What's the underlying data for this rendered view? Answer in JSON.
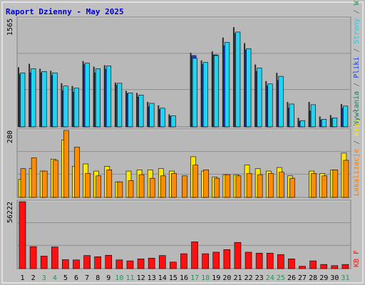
{
  "title": "Raport Dzienny -  May 2025",
  "colors": {
    "bg": "#c0c0c0",
    "panel": "#b8b8b8",
    "visits": "#1f7a5a",
    "pages": "#2646c8",
    "files": "#22d3f2",
    "hits": "#2a2a2a",
    "locations_fill_front": "#ff8c00",
    "locations_fill_back": "#ffe600",
    "kb": "#ff1010",
    "weekend_label": "#2f8f5a"
  },
  "chart_data": [
    {
      "type": "bar",
      "name": "top",
      "ylim": [
        0,
        1565
      ],
      "ytick_label": "1565",
      "right_label_parts": [
        {
          "text": "Wywłania",
          "color": "#1f7a5a"
        },
        {
          "text": " / ",
          "color": "#6a6a6a"
        },
        {
          "text": "Pliki",
          "color": "#2244cc"
        },
        {
          "text": " / ",
          "color": "#6a6a6a"
        },
        {
          "text": "Strony",
          "color": "#22c7df"
        },
        {
          "text": " / ",
          "color": "#6a6a6a"
        },
        {
          "text": "Wizyty",
          "color": "#2f8f5a"
        }
      ],
      "categories": [
        "1",
        "2",
        "3",
        "4",
        "5",
        "6",
        "7",
        "8",
        "9",
        "10",
        "11",
        "12",
        "13",
        "14",
        "15",
        "16",
        "17",
        "18",
        "19",
        "20",
        "21",
        "22",
        "23",
        "24",
        "25",
        "26",
        "27",
        "28",
        "29",
        "30",
        "31"
      ],
      "series": [
        {
          "name": "hits",
          "values": [
            860,
            910,
            840,
            810,
            630,
            590,
            950,
            870,
            890,
            640,
            520,
            490,
            360,
            310,
            180,
            0,
            1070,
            960,
            1090,
            1290,
            1440,
            1210,
            900,
            660,
            780,
            360,
            130,
            360,
            150,
            170,
            330
          ]
        },
        {
          "name": "files",
          "values": [
            780,
            840,
            800,
            780,
            590,
            560,
            920,
            840,
            880,
            630,
            490,
            460,
            340,
            270,
            160,
            0,
            990,
            930,
            1030,
            1220,
            1370,
            1130,
            850,
            620,
            730,
            330,
            90,
            320,
            110,
            130,
            300
          ]
        },
        {
          "name": "pages",
          "values": [
            760,
            780,
            780,
            740,
            520,
            500,
            900,
            780,
            830,
            600,
            480,
            430,
            290,
            250,
            150,
            0,
            1030,
            900,
            1040,
            1170,
            1350,
            1110,
            800,
            590,
            670,
            270,
            80,
            230,
            100,
            120,
            270
          ]
        },
        {
          "name": "visits",
          "values": [
            720,
            760,
            760,
            720,
            460,
            460,
            880,
            760,
            790,
            580,
            460,
            410,
            270,
            200,
            140,
            0,
            940,
            880,
            990,
            1160,
            1320,
            1090,
            780,
            560,
            650,
            250,
            70,
            220,
            90,
            110,
            250
          ]
        }
      ]
    },
    {
      "type": "bar",
      "name": "middle",
      "ylim": [
        0,
        280
      ],
      "ytick_label": "280",
      "right_label_parts": [
        {
          "text": "Lokalizacje",
          "color": "#ff7a00"
        },
        {
          "text": " / ",
          "color": "#6a6a6a"
        },
        {
          "text": "Kraj",
          "color": "#ffe600"
        }
      ],
      "categories": [
        "1",
        "2",
        "3",
        "4",
        "5",
        "6",
        "7",
        "8",
        "9",
        "10",
        "11",
        "12",
        "13",
        "14",
        "15",
        "16",
        "17",
        "18",
        "19",
        "20",
        "21",
        "22",
        "23",
        "24",
        "25",
        "26",
        "27",
        "28",
        "29",
        "30",
        "31"
      ],
      "series": [
        {
          "name": "back",
          "values": [
            75,
            120,
            110,
            160,
            240,
            130,
            140,
            110,
            130,
            65,
            110,
            115,
            115,
            120,
            110,
            0,
            170,
            110,
            85,
            95,
            95,
            135,
            120,
            110,
            125,
            90,
            0,
            110,
            100,
            115,
            185
          ]
        },
        {
          "name": "front",
          "values": [
            120,
            165,
            110,
            155,
            280,
            210,
            100,
            90,
            115,
            65,
            70,
            95,
            80,
            90,
            100,
            90,
            135,
            115,
            80,
            95,
            90,
            100,
            95,
            100,
            105,
            80,
            0,
            100,
            90,
            115,
            155
          ]
        }
      ]
    },
    {
      "type": "bar",
      "name": "bottom",
      "ylim": [
        0,
        56222
      ],
      "ytick_label": "56222",
      "right_label_parts": [
        {
          "text": "KB F",
          "color": "#ff1010"
        }
      ],
      "categories": [
        "1",
        "2",
        "3",
        "4",
        "5",
        "6",
        "7",
        "8",
        "9",
        "10",
        "11",
        "12",
        "13",
        "14",
        "15",
        "16",
        "17",
        "18",
        "19",
        "20",
        "21",
        "22",
        "23",
        "24",
        "25",
        "26",
        "27",
        "28",
        "29",
        "30",
        "31"
      ],
      "series": [
        {
          "name": "kb",
          "values": [
            56222,
            18500,
            10500,
            18200,
            7500,
            7300,
            11000,
            10000,
            11200,
            7300,
            6500,
            8200,
            8800,
            11000,
            5500,
            12500,
            22500,
            12500,
            13800,
            16000,
            22000,
            13800,
            13000,
            13000,
            11800,
            8200,
            2000,
            6500,
            3500,
            2500,
            3500
          ]
        }
      ]
    }
  ],
  "x_axis": {
    "labels": [
      "1",
      "2",
      "3",
      "4",
      "5",
      "6",
      "7",
      "8",
      "9",
      "10",
      "11",
      "12",
      "13",
      "14",
      "15",
      "16",
      "17",
      "18",
      "19",
      "20",
      "21",
      "22",
      "23",
      "24",
      "25",
      "26",
      "27",
      "28",
      "29",
      "30",
      "31"
    ],
    "weekend_days": [
      "3",
      "4",
      "10",
      "11",
      "17",
      "18",
      "24",
      "25",
      "31"
    ]
  }
}
